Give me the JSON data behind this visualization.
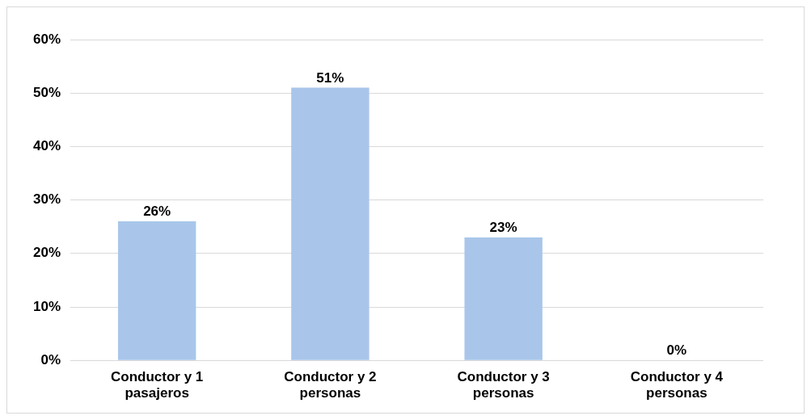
{
  "chart_data": {
    "type": "bar",
    "categories": [
      "Conductor y 1 pasajeros",
      "Conductor y 2 personas",
      "Conductor y 3 personas",
      "Conductor y 4 personas"
    ],
    "values": [
      26,
      51,
      23,
      0
    ],
    "value_labels": [
      "26%",
      "51%",
      "23%",
      "0%"
    ],
    "color": "#a9c6ea",
    "ylim": [
      0,
      60
    ],
    "yticks": [
      {
        "value": 0,
        "label": "0%"
      },
      {
        "value": 10,
        "label": "10%"
      },
      {
        "value": 20,
        "label": "20%"
      },
      {
        "value": 30,
        "label": "30%"
      },
      {
        "value": 40,
        "label": "40%"
      },
      {
        "value": 50,
        "label": "50%"
      },
      {
        "value": 60,
        "label": "60%"
      }
    ],
    "grid": "y",
    "legend": false
  }
}
